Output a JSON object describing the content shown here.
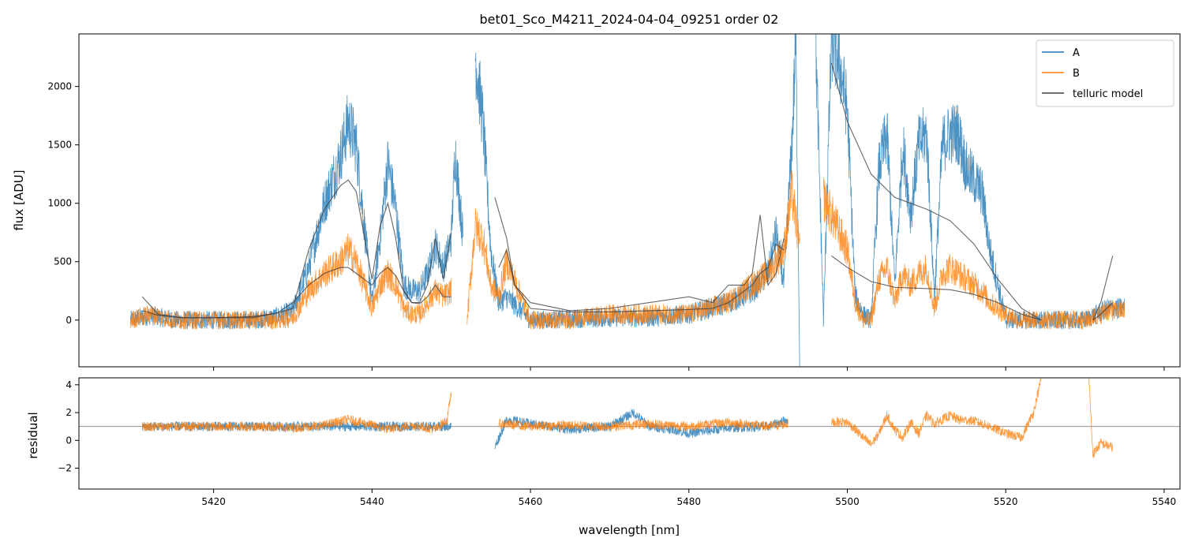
{
  "chart_data": {
    "type": "line",
    "title": "bet01_Sco_M4211_2024-04-04_09251  order 02",
    "xlabel": "wavelength [nm]",
    "xlim": [
      5403,
      5542
    ],
    "x_ticks": [
      5420,
      5440,
      5460,
      5480,
      5500,
      5520,
      5540
    ],
    "legend_position": "top-right",
    "colors": {
      "A": "#1f77b4",
      "B": "#ff7f0e",
      "telluric model": "#404040"
    },
    "panels": [
      {
        "name": "flux",
        "ylabel": "flux [ADU]",
        "ylim": [
          -400,
          2450
        ],
        "y_ticks": [
          0,
          500,
          1000,
          1500,
          2000
        ],
        "series": [
          {
            "name": "A",
            "segments": [
              {
                "x": [
                  5409.5,
                  5412,
                  5415,
                  5420,
                  5425,
                  5428,
                  5430,
                  5432,
                  5434,
                  5436,
                  5437,
                  5438,
                  5440,
                  5441,
                  5442,
                  5443,
                  5444,
                  5445,
                  5446,
                  5447,
                  5448,
                  5449,
                  5450,
                  5450.5,
                  5451.5
                ],
                "y": [
                  0,
                  40,
                  0,
                  0,
                  0,
                  30,
                  80,
                  450,
                  1000,
                  1400,
                  1700,
                  1500,
                  150,
                  700,
                  1350,
                  950,
                  300,
                  250,
                  250,
                  400,
                  650,
                  450,
                  700,
                  1450,
                  700
                ]
              },
              {
                "x": [
                  5453,
                  5454,
                  5455,
                  5456,
                  5457,
                  5460,
                  5465,
                  5470,
                  5475,
                  5480,
                  5485,
                  5488,
                  5490,
                  5491,
                  5492,
                  5493,
                  5493.5,
                  5494
                ],
                "y": [
                  2300,
                  1700,
                  600,
                  150,
                  200,
                  0,
                  10,
                  20,
                  20,
                  50,
                  150,
                  250,
                  400,
                  750,
                  300,
                  1500,
                  2400,
                  -400
                ]
              },
              {
                "x": [
                  5496,
                  5497,
                  5498,
                  5499,
                  5500,
                  5501,
                  5502,
                  5503,
                  5504,
                  5505,
                  5506,
                  5507,
                  5508,
                  5509,
                  5510,
                  5511,
                  5512,
                  5513,
                  5514,
                  5515,
                  5516,
                  5517,
                  5518,
                  5520,
                  5522,
                  5525,
                  5530,
                  5533,
                  5535
                ],
                "y": [
                  2400,
                  0,
                  2400,
                  2200,
                  1800,
                  200,
                  50,
                  0,
                  1300,
                  1600,
                  300,
                  1500,
                  900,
                  1500,
                  1600,
                  200,
                  1500,
                  1600,
                  1600,
                  1300,
                  1200,
                  1100,
                  600,
                  0,
                  0,
                  0,
                  0,
                  100,
                  100
                ]
              }
            ]
          },
          {
            "name": "B",
            "segments": [
              {
                "x": [
                  5409.5,
                  5412,
                  5415,
                  5420,
                  5425,
                  5428,
                  5430,
                  5432,
                  5434,
                  5436,
                  5437,
                  5438,
                  5440,
                  5441,
                  5442,
                  5443,
                  5444,
                  5445,
                  5446,
                  5447,
                  5448,
                  5449,
                  5450
                ],
                "y": [
                  0,
                  50,
                  0,
                  0,
                  0,
                  0,
                  20,
                  250,
                  400,
                  500,
                  600,
                  500,
                  100,
                  300,
                  400,
                  300,
                  100,
                  50,
                  50,
                  150,
                  250,
                  200,
                  250
                ]
              },
              {
                "x": [
                  5452,
                  5453,
                  5454,
                  5455,
                  5456,
                  5457,
                  5460,
                  5465,
                  5470,
                  5475,
                  5480,
                  5485,
                  5488,
                  5490,
                  5491,
                  5492,
                  5493,
                  5494
                ],
                "y": [
                  0,
                  800,
                  700,
                  300,
                  200,
                  500,
                  0,
                  0,
                  50,
                  50,
                  50,
                  150,
                  300,
                  400,
                  500,
                  600,
                  1100,
                  600
                ]
              },
              {
                "x": [
                  5497,
                  5498,
                  5500,
                  5501,
                  5502,
                  5503,
                  5504,
                  5505,
                  5506,
                  5507,
                  5508,
                  5509,
                  5510,
                  5511,
                  5512,
                  5513,
                  5514,
                  5515,
                  5516,
                  5517,
                  5518,
                  5520,
                  5522,
                  5525,
                  5530,
                  5533,
                  5535
                ],
                "y": [
                  1050,
                  900,
                  600,
                  150,
                  0,
                  0,
                  350,
                  450,
                  150,
                  400,
                  300,
                  400,
                  450,
                  100,
                  400,
                  450,
                  400,
                  350,
                  300,
                  250,
                  150,
                  50,
                  0,
                  0,
                  0,
                  80,
                  80
                ]
              }
            ]
          },
          {
            "name": "telluric model",
            "segments": [
              {
                "x": [
                  5411,
                  5413,
                  5416,
                  5420,
                  5425,
                  5428,
                  5430,
                  5432,
                  5434,
                  5436,
                  5437,
                  5438,
                  5440,
                  5441,
                  5442,
                  5443,
                  5444,
                  5445,
                  5446,
                  5447,
                  5448,
                  5449,
                  5450
                ],
                "y": [
                  200,
                  50,
                  20,
                  20,
                  30,
                  60,
                  100,
                  600,
                  950,
                  1150,
                  1200,
                  1100,
                  350,
                  800,
                  1000,
                  700,
                  250,
                  150,
                  150,
                  300,
                  700,
                  350,
                  750
                ]
              },
              {
                "x": [
                  5411,
                  5413,
                  5416,
                  5420,
                  5425,
                  5428,
                  5430,
                  5432,
                  5434,
                  5436,
                  5437,
                  5438,
                  5440,
                  5441,
                  5442,
                  5443,
                  5444,
                  5445,
                  5446,
                  5447,
                  5448,
                  5449,
                  5450
                ],
                "y": [
                  80,
                  40,
                  20,
                  20,
                  20,
                  60,
                  150,
                  300,
                  400,
                  450,
                  450,
                  400,
                  300,
                  400,
                  450,
                  380,
                  250,
                  150,
                  140,
                  200,
                  300,
                  200,
                  200
                ]
              },
              {
                "x": [
                  5455.5,
                  5457,
                  5458,
                  5460,
                  5465,
                  5470,
                  5475,
                  5480,
                  5483,
                  5485,
                  5487,
                  5488,
                  5489,
                  5490,
                  5491,
                  5492
                ],
                "y": [
                  1050,
                  700,
                  300,
                  100,
                  70,
                  70,
                  80,
                  90,
                  100,
                  150,
                  250,
                  300,
                  400,
                  450,
                  650,
                  600
                ]
              },
              {
                "x": [
                  5456,
                  5457,
                  5458,
                  5460,
                  5465,
                  5470,
                  5475,
                  5480,
                  5483,
                  5485,
                  5487,
                  5488,
                  5489,
                  5490,
                  5491,
                  5492
                ],
                "y": [
                  450,
                  600,
                  300,
                  150,
                  80,
                  100,
                  150,
                  200,
                  150,
                  300,
                  300,
                  400,
                  900,
                  300,
                  400,
                  700
                ]
              },
              {
                "x": [
                  5498,
                  5500,
                  5503,
                  5506,
                  5510,
                  5513,
                  5516,
                  5519,
                  5522,
                  5524.5
                ],
                "y": [
                  2200,
                  1700,
                  1250,
                  1050,
                  950,
                  850,
                  650,
                  350,
                  100,
                  0
                ]
              },
              {
                "x": [
                  5498,
                  5500,
                  5503,
                  5506,
                  5510,
                  5513,
                  5516,
                  5519,
                  5522,
                  5524.5
                ],
                "y": [
                  550,
                  450,
                  330,
                  280,
                  270,
                  260,
                  220,
                  150,
                  50,
                  0
                ]
              },
              {
                "x": [
                  5531,
                  5532,
                  5533.5
                ],
                "y": [
                  0,
                  150,
                  550
                ]
              },
              {
                "x": [
                  5531,
                  5532,
                  5533.5
                ],
                "y": [
                  0,
                  50,
                  150
                ]
              }
            ]
          }
        ]
      },
      {
        "name": "residual",
        "ylabel": "residual",
        "ylim": [
          -3.5,
          4.5
        ],
        "y_ticks": [
          -2,
          0,
          2,
          4
        ],
        "reference_line": 1.0,
        "series": [
          {
            "name": "A",
            "segments": [
              {
                "x": [
                  5411,
                  5414,
                  5418,
                  5422,
                  5426,
                  5430,
                  5434,
                  5438,
                  5442,
                  5446,
                  5449,
                  5450
                ],
                "y": [
                  1.0,
                  1.0,
                  1.0,
                  1.0,
                  1.0,
                  1.0,
                  1.0,
                  1.0,
                  1.0,
                  1.0,
                  1.0,
                  1.0
                ]
              },
              {
                "x": [
                  5455.5,
                  5457,
                  5460,
                  5465,
                  5470,
                  5473,
                  5475,
                  5478,
                  5480,
                  5485,
                  5490,
                  5492.5
                ],
                "y": [
                  -0.5,
                  1.5,
                  1.2,
                  0.8,
                  1.0,
                  2.0,
                  1.0,
                  0.8,
                  0.5,
                  0.9,
                  1.0,
                  1.5
                ]
              }
            ]
          },
          {
            "name": "B",
            "segments": [
              {
                "x": [
                  5411,
                  5414,
                  5418,
                  5422,
                  5426,
                  5430,
                  5434,
                  5437,
                  5440,
                  5442,
                  5445,
                  5448,
                  5449.5,
                  5450
                ],
                "y": [
                  1.0,
                  1.0,
                  1.0,
                  1.0,
                  1.0,
                  0.9,
                  1.1,
                  1.5,
                  1.1,
                  0.8,
                  1.1,
                  0.8,
                  1.5,
                  3.5
                ]
              },
              {
                "x": [
                  5456,
                  5460,
                  5465,
                  5470,
                  5475,
                  5480,
                  5485,
                  5490,
                  5492.5
                ],
                "y": [
                  1.2,
                  1.0,
                  1.1,
                  1.0,
                  1.2,
                  1.0,
                  1.3,
                  1.0,
                  1.2
                ]
              },
              {
                "x": [
                  5498,
                  5500,
                  5501,
                  5502,
                  5503,
                  5504,
                  5505,
                  5506,
                  5507,
                  5508,
                  5509,
                  5510,
                  5511,
                  5512,
                  5513,
                  5514,
                  5516,
                  5518,
                  5520,
                  5522,
                  5523.5,
                  5524.5
                ],
                "y": [
                  1.3,
                  1.3,
                  0.8,
                  0.2,
                  -0.3,
                  0.5,
                  1.8,
                  0.8,
                  0.2,
                  1.3,
                  0.5,
                  1.8,
                  1.2,
                  1.5,
                  1.8,
                  1.5,
                  1.4,
                  1.0,
                  0.5,
                  0.2,
                  2.0,
                  4.5
                ]
              },
              {
                "x": [
                  5530.5,
                  5531,
                  5532,
                  5533.5
                ],
                "y": [
                  4.5,
                  -1.0,
                  -0.2,
                  -0.5
                ]
              }
            ]
          }
        ]
      }
    ]
  }
}
